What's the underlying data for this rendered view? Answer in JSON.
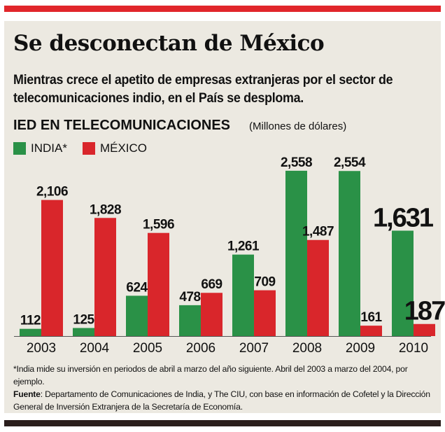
{
  "headline": "Se desconectan de México",
  "deck": "Mientras crece el apetito de empresas extranjeras por el sector de telecomunicaciones indio, en el País se desploma.",
  "chart_data": {
    "type": "bar",
    "title": "IED EN TELECOMUNICACIONES",
    "unit": "(Millones de dólares)",
    "categories": [
      "2003",
      "2004",
      "2005",
      "2006",
      "2007",
      "2008",
      "2009",
      "2010"
    ],
    "series": [
      {
        "name": "INDIA*",
        "color": "#2a9147",
        "values": [
          112,
          125,
          624,
          478,
          1261,
          2558,
          2554,
          1631
        ],
        "labels": [
          "112",
          "125",
          "624",
          "478",
          "1,261",
          "2,558",
          "2,554",
          "1,631"
        ]
      },
      {
        "name": "MÉXICO",
        "color": "#d9262b",
        "values": [
          2106,
          1828,
          1596,
          669,
          709,
          1487,
          161,
          187
        ],
        "labels": [
          "2,106",
          "1,828",
          "1,596",
          "669",
          "709",
          "1,487",
          "161",
          "187"
        ]
      }
    ],
    "ylim": [
      0,
      2600
    ],
    "grid": false,
    "legend": "top-left",
    "emphasized_category": "2010"
  },
  "footnote": {
    "note": "*India mide su inversión en periodos de abril a marzo del año siguiente. Abril del 2003 a marzo del 2004, por ejemplo.",
    "source_label": "Fuente",
    "source_text": ": Departamento de Comunicaciones de India, y The CIU, con base en información de Cofetel y la Dirección General de Inversión Extranjera de la Secretaría de Economía."
  },
  "colors": {
    "accent_red": "#e1262b",
    "panel": "#ece9e1",
    "dark_rule": "#2a1e1c"
  }
}
